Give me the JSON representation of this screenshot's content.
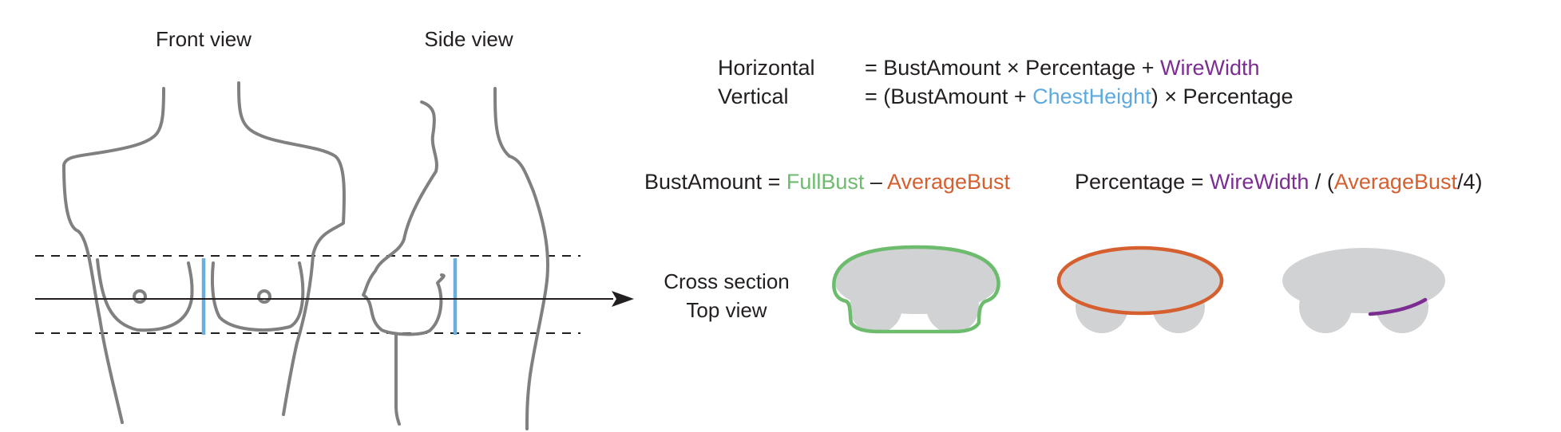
{
  "labels": {
    "front_view": "Front view",
    "side_view": "Side view",
    "cross_section_line1": "Cross section",
    "cross_section_line2": "Top view"
  },
  "colors": {
    "full_bust": "#6dbb6d",
    "average_bust": "#d65f30",
    "wire_width": "#7b2d92",
    "chest_height": "#5eaade",
    "body_outline": "#808080",
    "cross_section_fill": "#d1d2d4",
    "text": "#231f20"
  },
  "formulas": {
    "horizontal": {
      "name": "Horizontal",
      "expr_a": "= BustAmount × Percentage + ",
      "expr_b": "WireWidth"
    },
    "vertical": {
      "name": "Vertical",
      "expr_a": "= (BustAmount + ",
      "expr_b": "ChestHeight",
      "expr_c": ") × Percentage"
    },
    "bust_amount": {
      "lhs": "BustAmount = ",
      "term1": "FullBust",
      "op": " – ",
      "term2": "AverageBust"
    },
    "percentage": {
      "lhs": "Percentage = ",
      "term1": "WireWidth",
      "mid": " / (",
      "term2": "AverageBust",
      "tail": "/4)"
    }
  }
}
